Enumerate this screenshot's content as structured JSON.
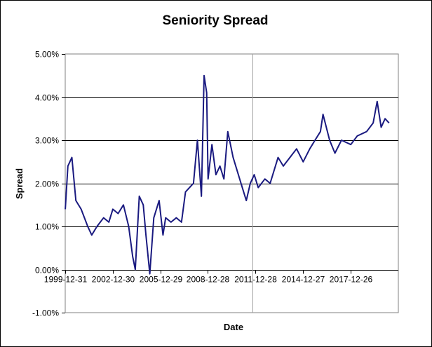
{
  "chart_data": {
    "type": "line",
    "title": "Seniority Spread",
    "xlabel": "Date",
    "ylabel": "Spread",
    "ylim": [
      -0.01,
      0.05
    ],
    "y_ticks": [
      {
        "value": 0.05,
        "label": "5.00%"
      },
      {
        "value": 0.04,
        "label": "4.00%"
      },
      {
        "value": 0.03,
        "label": "3.00%"
      },
      {
        "value": 0.02,
        "label": "2.00%"
      },
      {
        "value": 0.01,
        "label": "1.00%"
      },
      {
        "value": 0.0,
        "label": "0.00%"
      },
      {
        "value": -0.01,
        "label": "-1.00%"
      }
    ],
    "x_range": [
      "1999-12-31",
      "2020-12-31"
    ],
    "x_ticks": [
      "1999-12-31",
      "2002-12-30",
      "2005-12-29",
      "2008-12-28",
      "2011-12-28",
      "2014-12-27",
      "2017-12-26"
    ],
    "grid": "horizontal",
    "legend": "none",
    "colors": {
      "line": "#1a1a80",
      "grid": "#000000",
      "frame": "#808080",
      "plot_bg": "#ffffff"
    },
    "series": [
      {
        "x": [
          "2000-01-01",
          "2000-03-01",
          "2000-06-01",
          "2000-09-01",
          "2001-01-01",
          "2001-06-01",
          "2001-09-01",
          "2002-01-01",
          "2002-06-01",
          "2002-10-01",
          "2003-01-01",
          "2003-05-01",
          "2003-09-01",
          "2004-01-01",
          "2004-04-01",
          "2004-06-01",
          "2004-09-01",
          "2004-12-01",
          "2005-02-01",
          "2005-05-01",
          "2005-08-01",
          "2005-12-01",
          "2006-03-01",
          "2006-05-01",
          "2006-09-01",
          "2007-01-01",
          "2007-05-01",
          "2007-08-01",
          "2007-11-01",
          "2008-02-01",
          "2008-05-01",
          "2008-08-01",
          "2008-10-01",
          "2008-12-01",
          "2009-01-01",
          "2009-04-01",
          "2009-07-01",
          "2009-10-01",
          "2010-01-01",
          "2010-04-01",
          "2010-08-01",
          "2010-12-01",
          "2011-03-01",
          "2011-06-01",
          "2011-09-01",
          "2011-12-01",
          "2012-03-01",
          "2012-08-01",
          "2012-12-01",
          "2013-06-01",
          "2013-10-01",
          "2014-03-01",
          "2014-08-01",
          "2015-01-01",
          "2015-06-01",
          "2015-10-01",
          "2016-02-01",
          "2016-04-01",
          "2016-09-01",
          "2017-01-01",
          "2017-06-01",
          "2018-01-01",
          "2018-06-01",
          "2019-01-01",
          "2019-06-01",
          "2019-09-01",
          "2019-12-01",
          "2020-03-01",
          "2020-06-01"
        ],
        "values": [
          0.014,
          0.024,
          0.026,
          0.016,
          0.014,
          0.01,
          0.008,
          0.01,
          0.012,
          0.011,
          0.014,
          0.013,
          0.015,
          0.01,
          0.003,
          0.0,
          0.017,
          0.015,
          0.008,
          -0.001,
          0.012,
          0.016,
          0.008,
          0.012,
          0.011,
          0.012,
          0.011,
          0.018,
          0.019,
          0.02,
          0.03,
          0.017,
          0.045,
          0.041,
          0.021,
          0.029,
          0.022,
          0.024,
          0.021,
          0.032,
          0.026,
          0.022,
          0.019,
          0.016,
          0.02,
          0.022,
          0.019,
          0.021,
          0.02,
          0.026,
          0.024,
          0.026,
          0.028,
          0.025,
          0.028,
          0.03,
          0.032,
          0.036,
          0.03,
          0.027,
          0.03,
          0.029,
          0.031,
          0.032,
          0.034,
          0.039,
          0.033,
          0.035,
          0.034
        ]
      }
    ]
  }
}
